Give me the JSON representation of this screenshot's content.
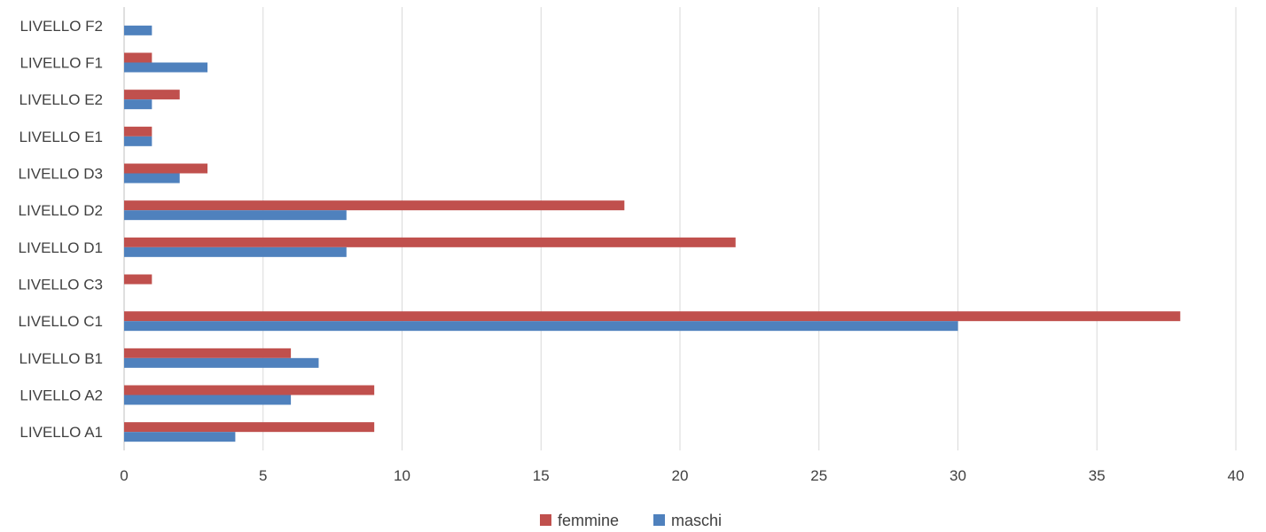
{
  "chart_data": {
    "type": "bar",
    "orientation": "horizontal",
    "categories": [
      "LIVELLO A1",
      "LIVELLO A2",
      "LIVELLO B1",
      "LIVELLO C1",
      "LIVELLO C3",
      "LIVELLO D1",
      "LIVELLO D2",
      "LIVELLO D3",
      "LIVELLO E1",
      "LIVELLO E2",
      "LIVELLO F1",
      "LIVELLO F2"
    ],
    "series": [
      {
        "name": "femmine",
        "color": "#C0504D",
        "values": [
          9,
          9,
          6,
          38,
          1,
          22,
          18,
          3,
          1,
          2,
          1,
          0
        ]
      },
      {
        "name": "maschi",
        "color": "#4F81BD",
        "values": [
          4,
          6,
          7,
          30,
          0,
          8,
          8,
          2,
          1,
          1,
          3,
          1
        ]
      }
    ],
    "xlim": [
      0,
      40
    ],
    "xticks": [
      "0",
      "5",
      "10",
      "15",
      "20",
      "25",
      "30",
      "35",
      "40"
    ],
    "grid": "vertical",
    "legend_position": "bottom"
  },
  "legend": {
    "items": [
      {
        "label": "femmine",
        "color": "#C0504D"
      },
      {
        "label": "maschi",
        "color": "#4F81BD"
      }
    ]
  }
}
